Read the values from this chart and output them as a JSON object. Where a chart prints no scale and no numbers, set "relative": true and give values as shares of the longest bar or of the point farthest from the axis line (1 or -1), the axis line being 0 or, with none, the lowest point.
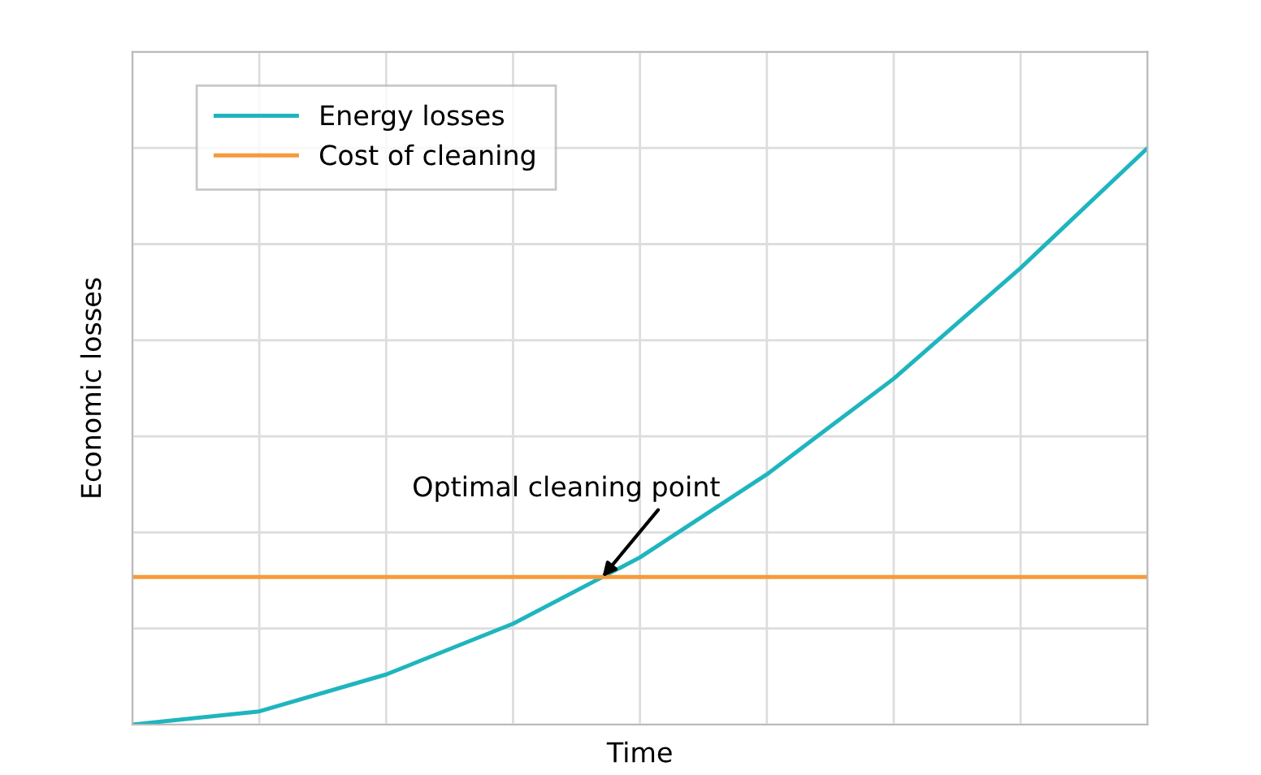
{
  "chart_data": {
    "type": "line",
    "relative": true,
    "xlabel": "Time",
    "ylabel": "Economic losses",
    "categories": [
      null,
      null,
      null,
      null,
      null,
      null,
      null,
      null,
      null
    ],
    "series": [
      {
        "name": "Energy losses",
        "color": "#1fb5bf",
        "values": [
          0,
          0.023,
          0.087,
          0.175,
          0.29,
          0.434,
          0.6,
          0.792,
          1.0
        ]
      },
      {
        "name": "Cost of cleaning",
        "color": "#f59a3c",
        "values": [
          0.256,
          0.256,
          0.256,
          0.256,
          0.256,
          0.256,
          0.256,
          0.256,
          0.256
        ]
      }
    ],
    "annotations": [
      "Optimal cleaning point"
    ],
    "grid": true,
    "legend": "top left",
    "line_style": "solid",
    "marker": "none"
  }
}
